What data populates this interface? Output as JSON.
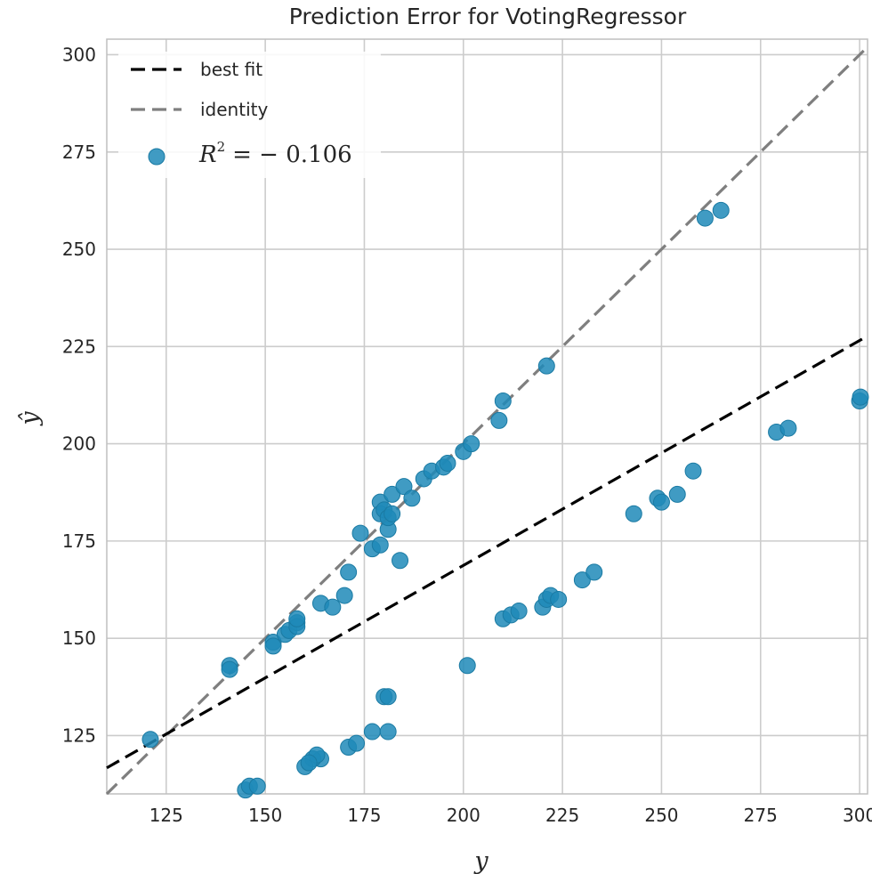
{
  "chart_data": {
    "type": "scatter",
    "title": "Prediction Error for VotingRegressor",
    "xlabel": "y",
    "ylabel": "ŷ",
    "xlim": [
      110,
      302
    ],
    "ylim": [
      110,
      304
    ],
    "x_ticks": [
      125,
      150,
      175,
      200,
      225,
      250,
      275,
      300
    ],
    "y_ticks": [
      125,
      150,
      175,
      200,
      225,
      250,
      275,
      300
    ],
    "grid": true,
    "legend_position": "top-left",
    "legend": {
      "best_fit_label": "best fit",
      "identity_label": "identity",
      "r2_symbol": "R",
      "r2_exponent": "2",
      "r2_text": "= − 0.106"
    },
    "series": [
      {
        "name": "best fit",
        "style": "dashed",
        "color": "#000000",
        "x": [
          110,
          302
        ],
        "y": [
          116.7,
          227.7
        ]
      },
      {
        "name": "identity",
        "style": "dashed",
        "color": "#7f7f7f",
        "x": [
          110,
          302
        ],
        "y": [
          110,
          302
        ]
      },
      {
        "name": "points",
        "style": "markers",
        "color": "#1f8ab8",
        "x": [
          121,
          141,
          141,
          152,
          152,
          155,
          156,
          158,
          158,
          158,
          164,
          167,
          170,
          171,
          174,
          177,
          179,
          179,
          179,
          180,
          181,
          181,
          182,
          182,
          184,
          185,
          187,
          190,
          192,
          195,
          196,
          200,
          202,
          209,
          210,
          221,
          261,
          265,
          201,
          177,
          181,
          180,
          181,
          171,
          173,
          164,
          162,
          163,
          160,
          161,
          145,
          146,
          148,
          210,
          212,
          214,
          220,
          221,
          222,
          224,
          230,
          233,
          243,
          249,
          250,
          254,
          258,
          279,
          282,
          300,
          302
        ],
        "y": [
          124,
          143,
          142,
          149,
          148,
          151,
          152,
          154,
          153,
          155,
          159,
          158,
          161,
          167,
          177,
          173,
          185,
          182,
          174,
          183,
          178,
          181,
          187,
          182,
          170,
          189,
          186,
          191,
          193,
          194,
          195,
          198,
          200,
          206,
          211,
          220,
          258,
          260,
          143,
          126,
          126,
          135,
          135,
          122,
          123,
          119,
          119,
          120,
          117,
          118,
          111,
          112,
          112,
          155,
          156,
          157,
          158,
          160,
          161,
          160,
          165,
          167,
          182,
          186,
          185,
          187,
          193,
          203,
          204,
          211,
          212
        ]
      }
    ]
  }
}
